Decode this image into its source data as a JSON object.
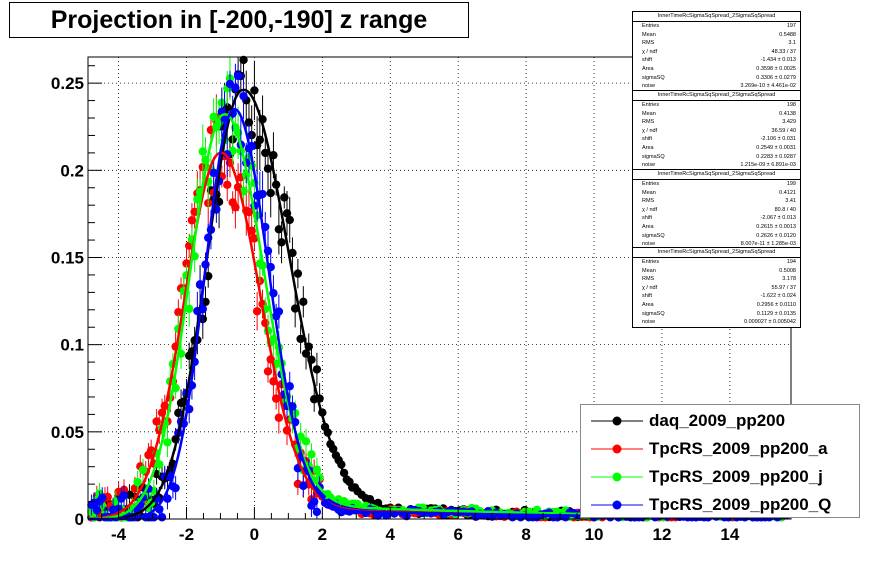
{
  "title": "Projection in [-200,-190] z range",
  "colors": {
    "daq": "#000000",
    "a": "#ff0000",
    "j": "#00ff00",
    "Q": "#0000ff",
    "frame": "#000000"
  },
  "chart_data": {
    "type": "scatter",
    "xlim": [
      -4.9,
      15.8
    ],
    "ylim": [
      0,
      0.265
    ],
    "x_ticks": [
      -4,
      -2,
      0,
      2,
      4,
      6,
      8,
      10,
      12,
      14
    ],
    "x_tick_labels": [
      "-4",
      "-2",
      "0",
      "2",
      "4",
      "6",
      "8",
      "10",
      "12",
      "14"
    ],
    "y_ticks": [
      0,
      0.05,
      0.1,
      0.15,
      0.2,
      0.25
    ],
    "y_tick_labels": [
      "0",
      "0.05",
      "0.1",
      "0.15",
      "0.2",
      "0.25"
    ],
    "grid": true,
    "legend_position": "bottom-right",
    "series": [
      {
        "name": "daq_2009_pp200",
        "key": "daq",
        "color": "#000000",
        "mu": -0.35,
        "sL": 1.05,
        "sR": 1.35,
        "amp": 0.246,
        "tail": 0.009
      },
      {
        "name": "TpcRS_2009_pp200_a",
        "key": "a",
        "color": "#ff0000",
        "mu": -1.0,
        "sL": 1.05,
        "sR": 1.15,
        "amp": 0.21,
        "tail": 0.008
      },
      {
        "name": "TpcRS_2009_pp200_j",
        "key": "j",
        "color": "#00ff00",
        "mu": -0.9,
        "sL": 1.0,
        "sR": 1.15,
        "amp": 0.232,
        "tail": 0.011
      },
      {
        "name": "TpcRS_2009_pp200_Q",
        "key": "Q",
        "color": "#0000ff",
        "mu": -0.6,
        "sL": 0.85,
        "sR": 1.0,
        "amp": 0.235,
        "tail": 0.007
      }
    ]
  },
  "stats_boxes": [
    {
      "header": "InnerTimeRcSigmaSqSpread_2SigmaSqSpread",
      "rows": [
        [
          "Entries",
          "197"
        ],
        [
          "Mean",
          "0.5488"
        ],
        [
          "RMS",
          "3.1"
        ],
        [
          "χ  / ndf",
          "48.33 / 37"
        ],
        [
          "shift",
          "-1.434 ± 0.013"
        ],
        [
          "Area",
          "0.3598 ± 0.0025"
        ],
        [
          "sigmaSQ",
          "0.3306 ± 0.0279"
        ],
        [
          "noise",
          "3.269e-10 ± 4.461e-02"
        ]
      ]
    },
    {
      "header": "InnerTimeRcSigmaSqSpread_2SigmaSqSpread",
      "rows": [
        [
          "Entries",
          "198"
        ],
        [
          "Mean",
          "0.4138"
        ],
        [
          "RMS",
          "3.429"
        ],
        [
          "χ  / ndf",
          "36.59 / 40"
        ],
        [
          "shift",
          "-2.106 ± 0.031"
        ],
        [
          "Area",
          "0.2549 ± 0.0031"
        ],
        [
          "sigmaSQ",
          "0.2283 ± 0.0287"
        ],
        [
          "noise",
          "1.215e-09 ± 6.891e-03"
        ]
      ]
    },
    {
      "header": "InnerTimeRcSigmaSqSpread_2SigmaSqSpread",
      "rows": [
        [
          "Entries",
          "199"
        ],
        [
          "Mean",
          "0.4121"
        ],
        [
          "RMS",
          "3.41"
        ],
        [
          "χ  / ndf",
          "80.8 / 40"
        ],
        [
          "shift",
          "-2.067 ± 0.013"
        ],
        [
          "Area",
          "0.2615 ± 0.0013"
        ],
        [
          "sigmaSQ",
          "0.2626 ± 0.0120"
        ],
        [
          "noise",
          "8.007e-11 ± 1.285e-03"
        ]
      ]
    },
    {
      "header": "InnerTimeRcSigmaSqSpread_2SigmaSqSpread",
      "rows": [
        [
          "Entries",
          "194"
        ],
        [
          "Mean",
          "0.5008"
        ],
        [
          "RMS",
          "3.178"
        ],
        [
          "χ  / ndf",
          "55.97 / 37"
        ],
        [
          "shift",
          "-1.622 ± 0.024"
        ],
        [
          "Area",
          "0.2956 ± 0.0110"
        ],
        [
          "sigmaSQ",
          "0.1129 ± 0.0135"
        ],
        [
          "noise",
          "0.009027 ± 0.005042"
        ]
      ]
    }
  ]
}
